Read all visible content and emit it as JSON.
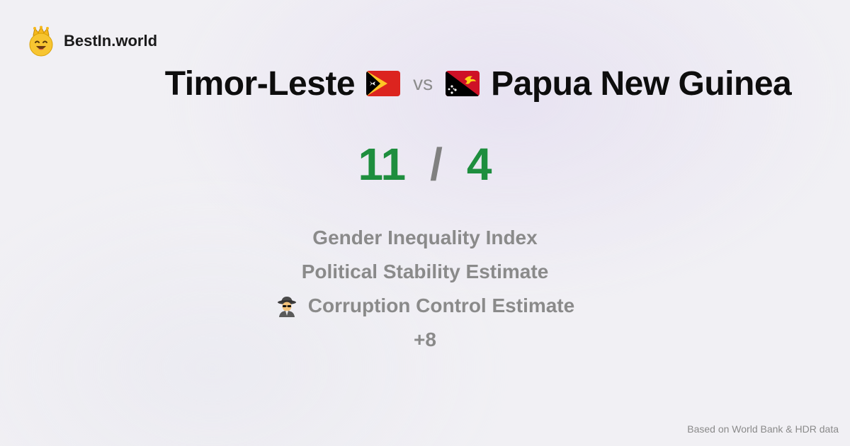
{
  "brand": {
    "name": "BestIn.world",
    "logo_icon": "crown-smiley-icon"
  },
  "comparison": {
    "country_a": {
      "name": "Timor-Leste",
      "flag_icon": "timor-leste-flag-icon",
      "score": "11"
    },
    "vs_label": "vs",
    "country_b": {
      "name": "Papua New Guinea",
      "flag_icon": "papua-new-guinea-flag-icon",
      "score": "4"
    },
    "score_separator": "/"
  },
  "metrics": {
    "items": [
      {
        "label": "Gender Inequality Index",
        "icon": ""
      },
      {
        "label": "Political Stability Estimate",
        "icon": ""
      },
      {
        "label": "Corruption Control Estimate",
        "icon": "detective-icon"
      }
    ],
    "more_label": "+8"
  },
  "footer": {
    "source_text": "Based on World Bank & HDR data"
  },
  "colors": {
    "score": "#1e8e3e",
    "muted": "#8a8a8a",
    "title": "#0d0d0d",
    "background": "#f1f0f4"
  }
}
